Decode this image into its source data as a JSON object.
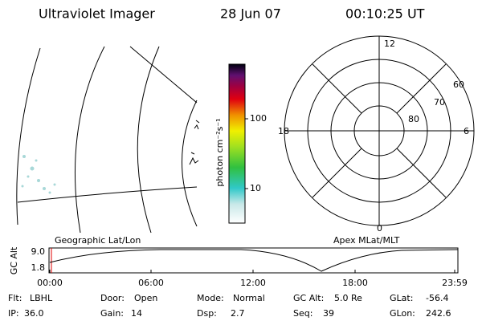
{
  "header": {
    "instrument": "Ultraviolet Imager",
    "date": "28 Jun 07",
    "time": "00:10:25 UT"
  },
  "colorbar": {
    "label": "photon cm⁻²s⁻¹",
    "ticks": [
      "100",
      "10"
    ]
  },
  "polar": {
    "mlt_labels": [
      "12",
      "6",
      "0",
      "18"
    ],
    "lat_labels": [
      "60",
      "70",
      "80"
    ]
  },
  "orbit": {
    "left_title": "Geographic Lat/Lon",
    "right_title": "Apex MLat/MLT",
    "axis_label": "GC Alt",
    "yticks": [
      "9.0",
      "1.8"
    ],
    "xticks": [
      "00:00",
      "06:00",
      "12:00",
      "18:00",
      "23:59"
    ]
  },
  "info": {
    "rows": [
      [
        {
          "label": "Flt:",
          "value": "LBHL"
        },
        {
          "label": "Door:",
          "value": "Open"
        },
        {
          "label": "Mode:",
          "value": "Normal"
        },
        {
          "label": "GC Alt:",
          "value": "5.0 Re"
        },
        {
          "label": "GLat:",
          "value": "-56.4"
        }
      ],
      [
        {
          "label": "IP:",
          "value": "36.0"
        },
        {
          "label": "Gain:",
          "value": "14"
        },
        {
          "label": "Dsp:",
          "value": "2.7"
        },
        {
          "label": "Seq:",
          "value": "39"
        },
        {
          "label": "GLon:",
          "value": "242.6"
        }
      ]
    ]
  }
}
